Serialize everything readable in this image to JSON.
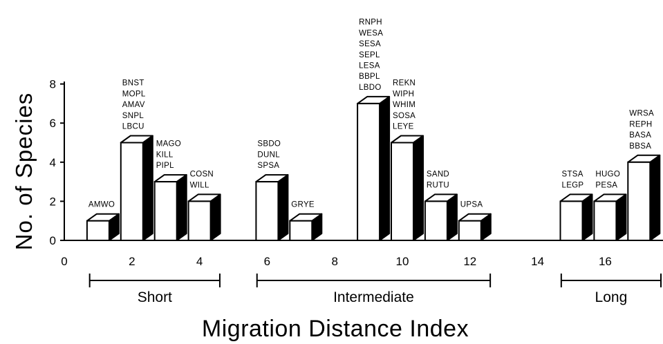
{
  "chart_data": {
    "type": "bar",
    "xlabel": "Migration Distance Index",
    "ylabel": "No. of Species",
    "xlim": [
      0,
      17.8
    ],
    "ylim": [
      0,
      8
    ],
    "x_ticks": [
      "0",
      "2",
      "4",
      "6",
      "8",
      "10",
      "12",
      "14",
      "16"
    ],
    "y_ticks": [
      "0",
      "2",
      "4",
      "6",
      "8"
    ],
    "bars": [
      {
        "x": 1,
        "value": 1,
        "species": [
          "AMWO"
        ]
      },
      {
        "x": 2,
        "value": 5,
        "species": [
          "BNST",
          "MOPL",
          "AMAV",
          "SNPL",
          "LBCU"
        ]
      },
      {
        "x": 3,
        "value": 3,
        "species": [
          "MAGO",
          "KILL",
          "PIPL"
        ]
      },
      {
        "x": 4,
        "value": 2,
        "species": [
          "COSN",
          "WILL"
        ]
      },
      {
        "x": 6,
        "value": 3,
        "species": [
          "SBDO",
          "DUNL",
          "SPSA"
        ]
      },
      {
        "x": 7,
        "value": 1,
        "species": [
          "GRYE"
        ]
      },
      {
        "x": 9,
        "value": 7,
        "species": [
          "RNPH",
          "WESA",
          "SESA",
          "SEPL",
          "LESA",
          "BBPL",
          "LBDO"
        ]
      },
      {
        "x": 10,
        "value": 5,
        "species": [
          "REKN",
          "WIPH",
          "WHIM",
          "SOSA",
          "LEYE"
        ]
      },
      {
        "x": 11,
        "value": 2,
        "species": [
          "SAND",
          "RUTU"
        ]
      },
      {
        "x": 12,
        "value": 1,
        "species": [
          "UPSA"
        ]
      },
      {
        "x": 15,
        "value": 2,
        "species": [
          "STSA",
          "LEGP"
        ]
      },
      {
        "x": 16,
        "value": 2,
        "species": [
          "HUGO",
          "PESA"
        ]
      },
      {
        "x": 17,
        "value": 4,
        "species": [
          "WRSA",
          "REPH",
          "BASA",
          "BBSA"
        ]
      }
    ],
    "groups": [
      {
        "label": "Short",
        "from": 0.75,
        "to": 4.6
      },
      {
        "label": "Intermediate",
        "from": 5.7,
        "to": 12.6
      },
      {
        "label": "Long",
        "from": 14.7,
        "to": 17.9
      }
    ]
  }
}
